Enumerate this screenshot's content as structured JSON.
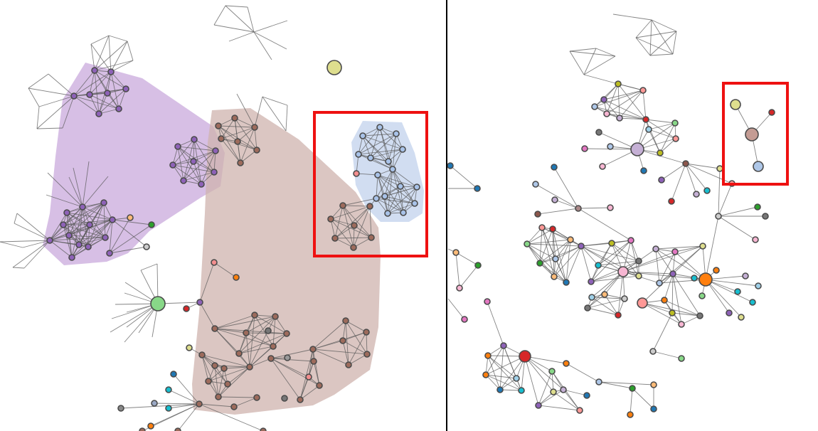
{
  "colors": {
    "hull_purple": "#c9a9dc",
    "hull_brown": "#cfb3ad",
    "hull_blue": "#c9d7ee",
    "focus_box": "#ee1111",
    "divider": "#000000"
  },
  "panels": [
    "left-network-view",
    "right-network-view"
  ]
}
